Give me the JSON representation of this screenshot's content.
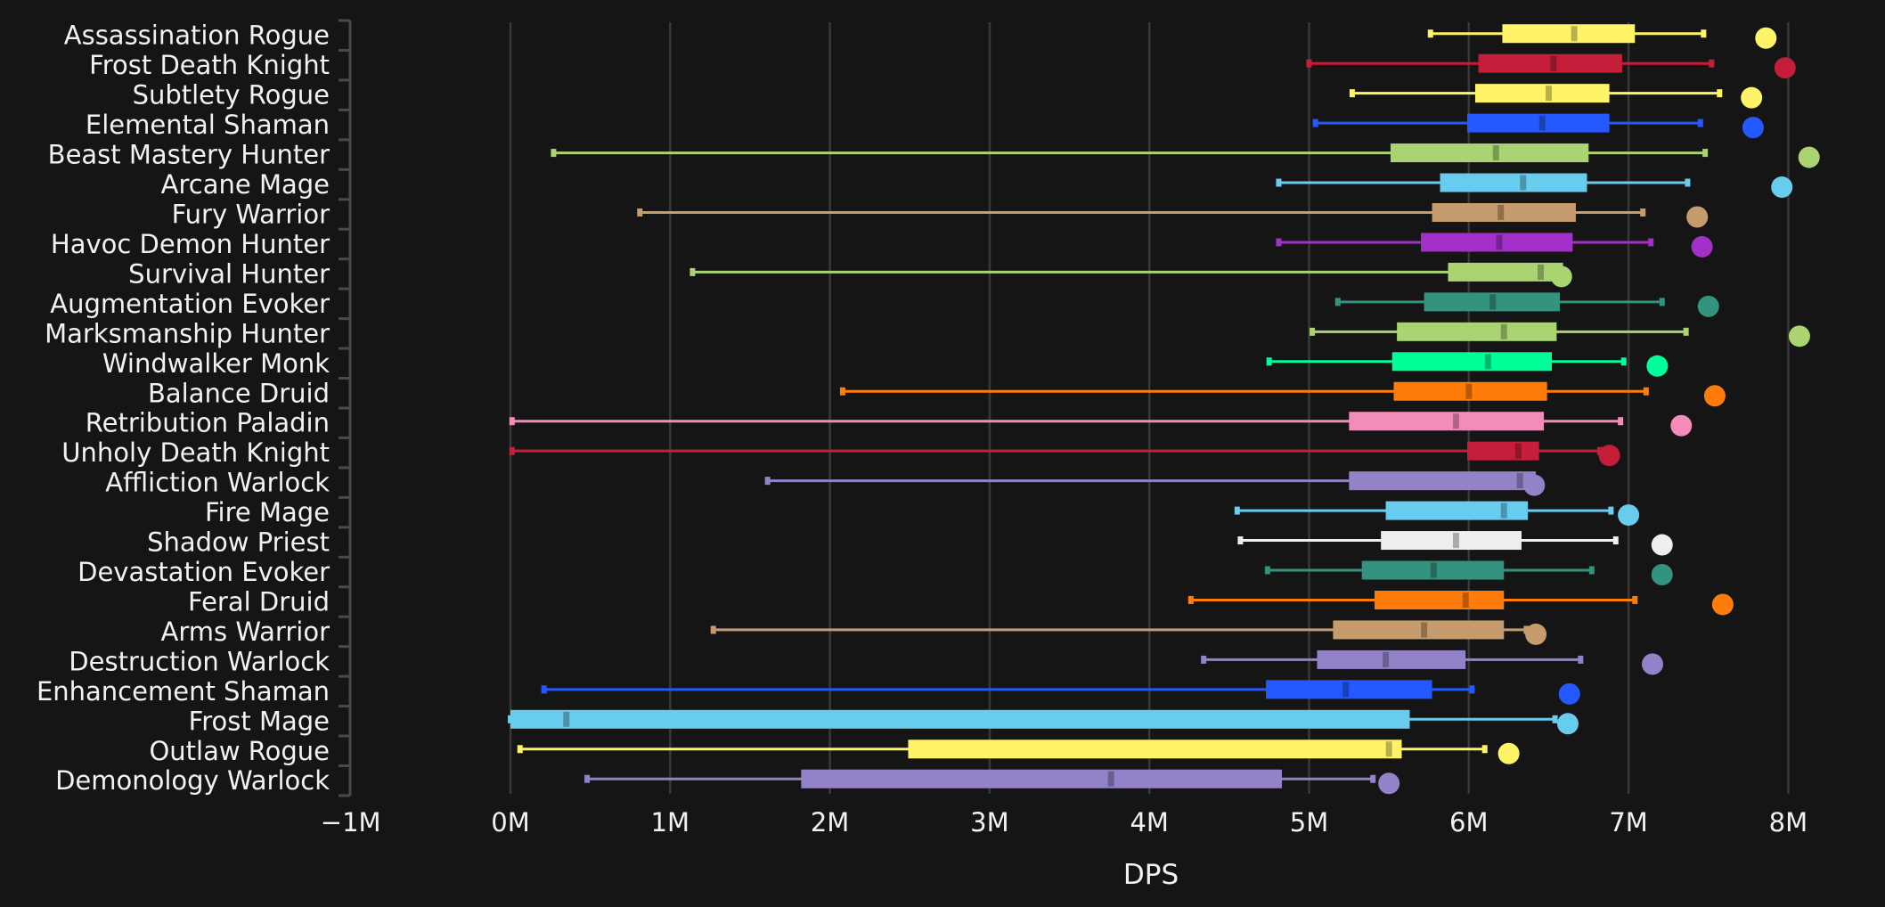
{
  "chart_data": {
    "type": "boxplot",
    "title": "",
    "xlabel": "DPS",
    "ylabel": "",
    "xlim": [
      -1000000,
      8300000
    ],
    "x_ticks": [
      -1000000,
      0,
      1000000,
      2000000,
      3000000,
      4000000,
      5000000,
      6000000,
      7000000,
      8000000
    ],
    "x_tick_labels": [
      "−1M",
      "0M",
      "1M",
      "2M",
      "3M",
      "4M",
      "5M",
      "6M",
      "7M",
      "8M"
    ],
    "grid": "vertical",
    "legend": "none",
    "value_unit": "millions of DPS",
    "series_fields": [
      "whisker_low",
      "q1",
      "median",
      "q3",
      "whisker_high",
      "max_point"
    ],
    "categories": [
      "Assassination Rogue",
      "Frost Death Knight",
      "Subtlety Rogue",
      "Elemental Shaman",
      "Beast Mastery Hunter",
      "Arcane Mage",
      "Fury Warrior",
      "Havoc Demon Hunter",
      "Survival Hunter",
      "Augmentation Evoker",
      "Marksmanship Hunter",
      "Windwalker Monk",
      "Balance Druid",
      "Retribution Paladin",
      "Unholy Death Knight",
      "Affliction Warlock",
      "Fire Mage",
      "Shadow Priest",
      "Devastation Evoker",
      "Feral Druid",
      "Arms Warrior",
      "Destruction Warlock",
      "Enhancement Shaman",
      "Frost Mage",
      "Outlaw Rogue",
      "Demonology Warlock"
    ],
    "series": [
      {
        "name": "Assassination Rogue",
        "color": "#FFF468",
        "whisker_low": 5.76,
        "q1": 6.21,
        "median": 6.66,
        "q3": 7.04,
        "whisker_high": 7.47,
        "max_point": 7.86
      },
      {
        "name": "Frost Death Knight",
        "color": "#C41E3A",
        "whisker_low": 5.0,
        "q1": 6.06,
        "median": 6.53,
        "q3": 6.96,
        "whisker_high": 7.52,
        "max_point": 7.98
      },
      {
        "name": "Subtlety Rogue",
        "color": "#FFF468",
        "whisker_low": 5.27,
        "q1": 6.04,
        "median": 6.5,
        "q3": 6.88,
        "whisker_high": 7.57,
        "max_point": 7.77
      },
      {
        "name": "Elemental Shaman",
        "color": "#2459FF",
        "whisker_low": 5.04,
        "q1": 5.99,
        "median": 6.46,
        "q3": 6.88,
        "whisker_high": 7.45,
        "max_point": 7.78
      },
      {
        "name": "Beast Mastery Hunter",
        "color": "#AAD372",
        "whisker_low": 0.27,
        "q1": 5.51,
        "median": 6.17,
        "q3": 6.75,
        "whisker_high": 7.48,
        "max_point": 8.13
      },
      {
        "name": "Arcane Mage",
        "color": "#68CCEF",
        "whisker_low": 4.81,
        "q1": 5.82,
        "median": 6.34,
        "q3": 6.74,
        "whisker_high": 7.37,
        "max_point": 7.96
      },
      {
        "name": "Fury Warrior",
        "color": "#C69B6D",
        "whisker_low": 0.81,
        "q1": 5.77,
        "median": 6.2,
        "q3": 6.67,
        "whisker_high": 7.09,
        "max_point": 7.43
      },
      {
        "name": "Havoc Demon Hunter",
        "color": "#A330C9",
        "whisker_low": 4.81,
        "q1": 5.7,
        "median": 6.19,
        "q3": 6.65,
        "whisker_high": 7.14,
        "max_point": 7.46
      },
      {
        "name": "Survival Hunter",
        "color": "#AAD372",
        "whisker_low": 1.14,
        "q1": 5.87,
        "median": 6.45,
        "q3": 6.59,
        "whisker_high": 6.59,
        "max_point": 6.58
      },
      {
        "name": "Augmentation Evoker",
        "color": "#33937F",
        "whisker_low": 5.18,
        "q1": 5.72,
        "median": 6.15,
        "q3": 6.57,
        "whisker_high": 7.21,
        "max_point": 7.5
      },
      {
        "name": "Marksmanship Hunter",
        "color": "#AAD372",
        "whisker_low": 5.02,
        "q1": 5.55,
        "median": 6.22,
        "q3": 6.55,
        "whisker_high": 7.36,
        "max_point": 8.07
      },
      {
        "name": "Windwalker Monk",
        "color": "#00FF98",
        "whisker_low": 4.75,
        "q1": 5.52,
        "median": 6.12,
        "q3": 6.52,
        "whisker_high": 6.97,
        "max_point": 7.18
      },
      {
        "name": "Balance Druid",
        "color": "#FF7C0A",
        "whisker_low": 2.08,
        "q1": 5.53,
        "median": 6.0,
        "q3": 6.49,
        "whisker_high": 7.11,
        "max_point": 7.54
      },
      {
        "name": "Retribution Paladin",
        "color": "#F48CBA",
        "whisker_low": 0.01,
        "q1": 5.25,
        "median": 5.92,
        "q3": 6.47,
        "whisker_high": 6.95,
        "max_point": 7.33
      },
      {
        "name": "Unholy Death Knight",
        "color": "#C41E3A",
        "whisker_low": 0.01,
        "q1": 5.99,
        "median": 6.31,
        "q3": 6.44,
        "whisker_high": 6.82,
        "max_point": 6.88
      },
      {
        "name": "Affliction Warlock",
        "color": "#9482C9",
        "whisker_low": 1.61,
        "q1": 5.25,
        "median": 6.32,
        "q3": 6.42,
        "whisker_high": 6.42,
        "max_point": 6.41
      },
      {
        "name": "Fire Mage",
        "color": "#68CCEF",
        "whisker_low": 4.55,
        "q1": 5.48,
        "median": 6.22,
        "q3": 6.37,
        "whisker_high": 6.89,
        "max_point": 7.0
      },
      {
        "name": "Shadow Priest",
        "color": "#EEEEEE",
        "whisker_low": 4.57,
        "q1": 5.45,
        "median": 5.92,
        "q3": 6.33,
        "whisker_high": 6.92,
        "max_point": 7.21
      },
      {
        "name": "Devastation Evoker",
        "color": "#33937F",
        "whisker_low": 4.74,
        "q1": 5.33,
        "median": 5.78,
        "q3": 6.22,
        "whisker_high": 6.77,
        "max_point": 7.21
      },
      {
        "name": "Feral Druid",
        "color": "#FF7C0A",
        "whisker_low": 4.26,
        "q1": 5.41,
        "median": 5.98,
        "q3": 6.22,
        "whisker_high": 7.04,
        "max_point": 7.59
      },
      {
        "name": "Arms Warrior",
        "color": "#C69B6D",
        "whisker_low": 1.27,
        "q1": 5.15,
        "median": 5.72,
        "q3": 6.22,
        "whisker_high": 6.36,
        "max_point": 6.42
      },
      {
        "name": "Destruction Warlock",
        "color": "#9482C9",
        "whisker_low": 4.34,
        "q1": 5.05,
        "median": 5.48,
        "q3": 5.98,
        "whisker_high": 6.7,
        "max_point": 7.15
      },
      {
        "name": "Enhancement Shaman",
        "color": "#2459FF",
        "whisker_low": 0.21,
        "q1": 4.73,
        "median": 5.23,
        "q3": 5.77,
        "whisker_high": 6.02,
        "max_point": 6.63
      },
      {
        "name": "Frost Mage",
        "color": "#68CCEF",
        "whisker_low": 0.0,
        "q1": 0.0,
        "median": 0.35,
        "q3": 5.63,
        "whisker_high": 6.54,
        "max_point": 6.62
      },
      {
        "name": "Outlaw Rogue",
        "color": "#FFF468",
        "whisker_low": 0.06,
        "q1": 2.49,
        "median": 5.5,
        "q3": 5.58,
        "whisker_high": 6.1,
        "max_point": 6.25
      },
      {
        "name": "Demonology Warlock",
        "color": "#9482C9",
        "whisker_low": 0.48,
        "q1": 1.82,
        "median": 3.76,
        "q3": 4.83,
        "whisker_high": 5.4,
        "max_point": 5.5
      }
    ]
  }
}
